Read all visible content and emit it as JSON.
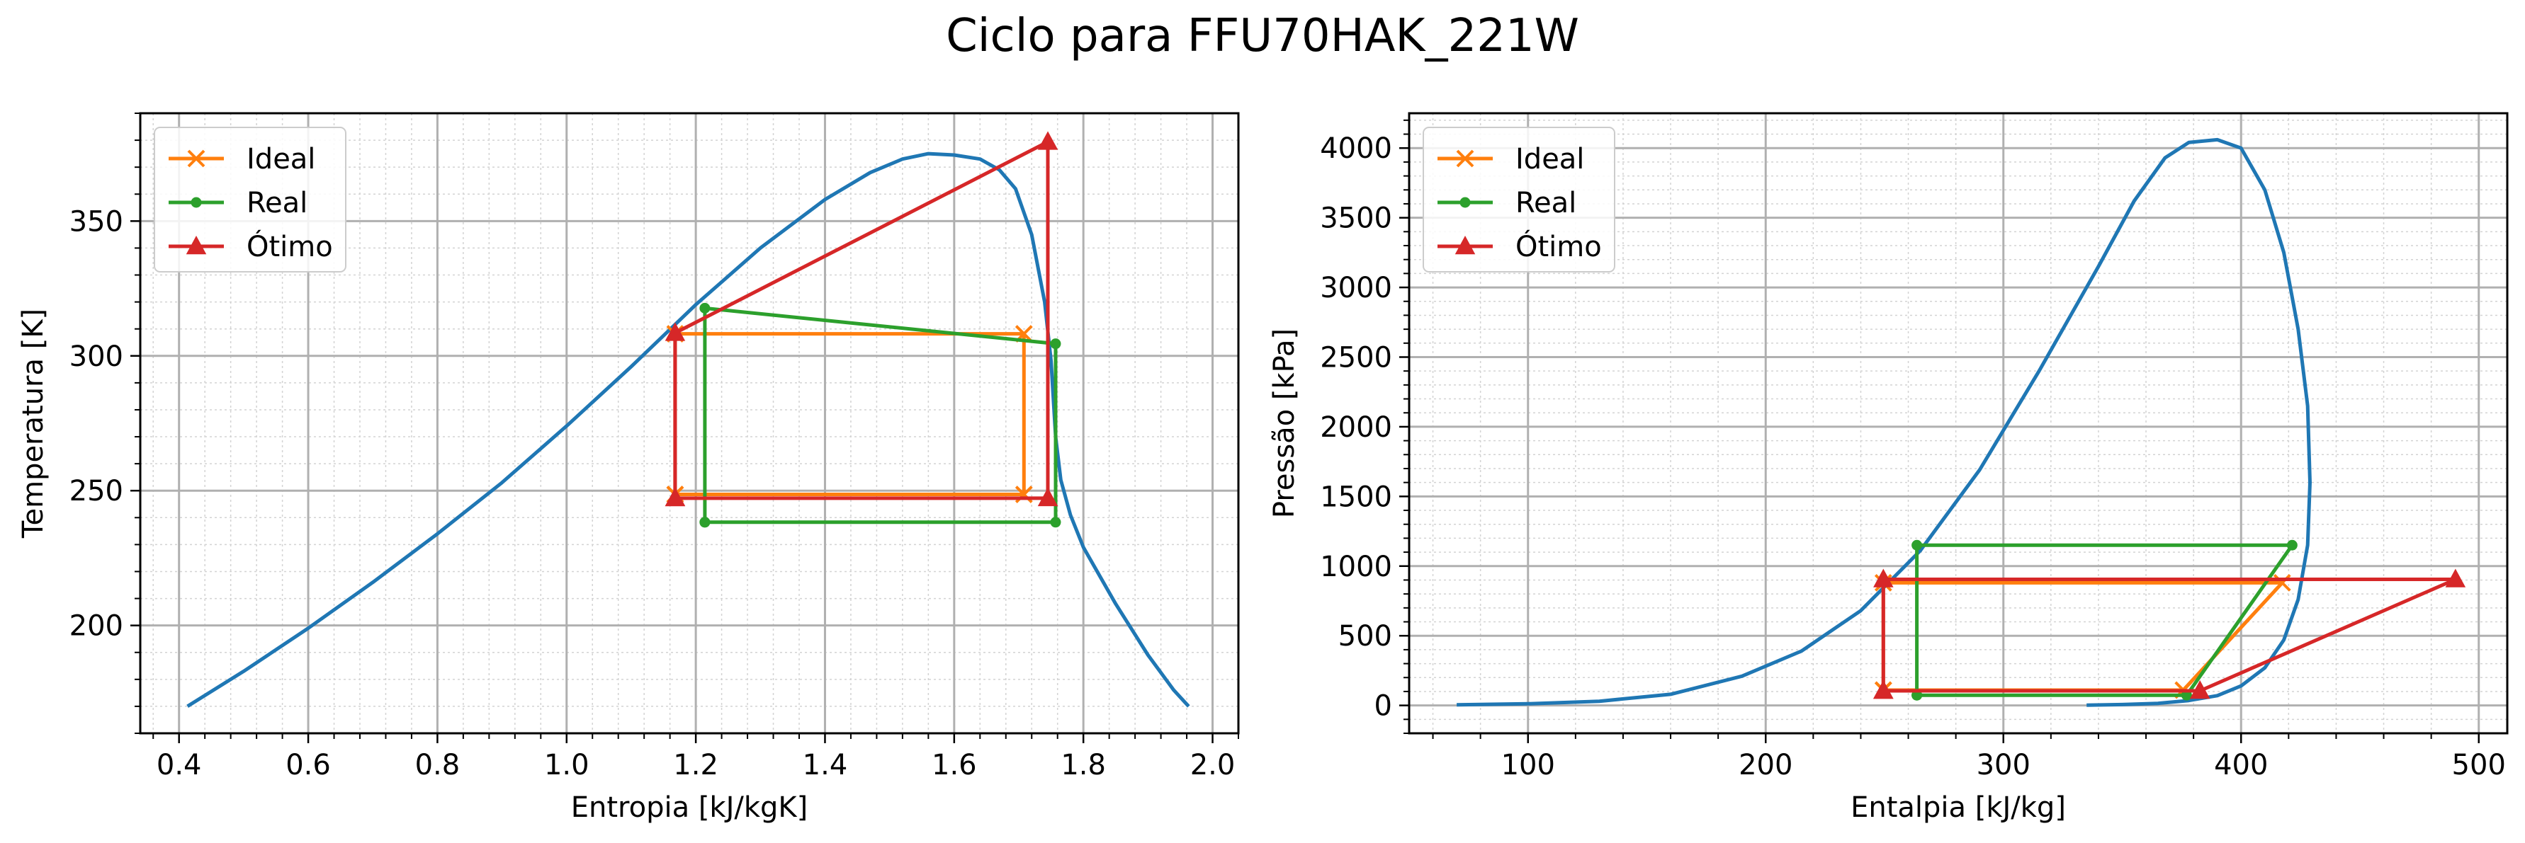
{
  "suptitle": "Ciclo para FFU70HAK_221W",
  "colors": {
    "dome": "#1f77b4",
    "ideal": "#ff7f0e",
    "real": "#2ca02c",
    "otimo": "#d62728"
  },
  "chart_data": [
    {
      "type": "line",
      "title": "",
      "xlabel": "Entropia [kJ/kgK]",
      "ylabel": "Temperatura [K]",
      "xlim": [
        0.34,
        2.04
      ],
      "ylim": [
        160,
        390
      ],
      "xticks": [
        0.4,
        0.6,
        0.8,
        1.0,
        1.2,
        1.4,
        1.6,
        1.8,
        2.0
      ],
      "xtick_labels": [
        "0.4",
        "0.6",
        "0.8",
        "1.0",
        "1.2",
        "1.4",
        "1.6",
        "1.8",
        "2.0"
      ],
      "yticks": [
        200,
        250,
        300,
        350
      ],
      "ytick_labels": [
        "200",
        "250",
        "300",
        "350"
      ],
      "grid": true,
      "legend_position": "top-left",
      "dome": {
        "x": [
          0.413,
          0.5,
          0.6,
          0.7,
          0.8,
          0.9,
          1.0,
          1.1,
          1.2,
          1.3,
          1.4,
          1.47,
          1.52,
          1.56,
          1.6,
          1.64,
          1.67,
          1.695,
          1.72,
          1.74,
          1.75,
          1.757,
          1.765,
          1.78,
          1.8,
          1.85,
          1.9,
          1.94,
          1.963
        ],
        "y": [
          170,
          183,
          199,
          216,
          234,
          253,
          274,
          296,
          319,
          340,
          358,
          368,
          373,
          375,
          374.5,
          373,
          369,
          362,
          345,
          320,
          298,
          270,
          254,
          241,
          229,
          208,
          189,
          176,
          170
        ]
      },
      "series": [
        {
          "name": "Ideal",
          "marker": "x",
          "x": [
            1.168,
            1.708,
            1.708,
            1.168,
            1.168
          ],
          "y": [
            248.6,
            248.6,
            308.2,
            308.2,
            248.6
          ]
        },
        {
          "name": "Real",
          "marker": "o",
          "x": [
            1.214,
            1.757,
            1.757,
            1.214,
            1.214
          ],
          "y": [
            238.3,
            238.3,
            304.5,
            317.7,
            238.3
          ]
        },
        {
          "name": "Ótimo",
          "marker": "^",
          "x": [
            1.168,
            1.745,
            1.745,
            1.168,
            1.168
          ],
          "y": [
            247.2,
            247.2,
            379.4,
            308.5,
            247.2
          ]
        }
      ]
    },
    {
      "type": "line",
      "title": "",
      "xlabel": "Entalpia [kJ/kg]",
      "ylabel": "Pressão [kPa]",
      "xlim": [
        50,
        512
      ],
      "ylim": [
        -200,
        4250
      ],
      "xticks": [
        100,
        200,
        300,
        400,
        500
      ],
      "xtick_labels": [
        "100",
        "200",
        "300",
        "400",
        "500"
      ],
      "yticks": [
        0,
        500,
        1000,
        1500,
        2000,
        2500,
        3000,
        3500,
        4000
      ],
      "ytick_labels": [
        "0",
        "500",
        "1000",
        "1500",
        "2000",
        "2500",
        "3000",
        "3500",
        "4000"
      ],
      "grid": true,
      "legend_position": "top-left",
      "dome": {
        "x": [
          70,
          100,
          130,
          160,
          190,
          215,
          240,
          265,
          290,
          315,
          340,
          355,
          368,
          378,
          390,
          400,
          410,
          418,
          424,
          428,
          429,
          428,
          424,
          418,
          410,
          400,
          390,
          378,
          365,
          350,
          335
        ],
        "y": [
          4,
          12,
          30,
          80,
          210,
          390,
          680,
          1110,
          1690,
          2400,
          3150,
          3620,
          3930,
          4040,
          4060,
          4000,
          3700,
          3250,
          2700,
          2150,
          1600,
          1150,
          760,
          470,
          270,
          140,
          70,
          35,
          15,
          6,
          2
        ]
      },
      "series": [
        {
          "name": "Ideal",
          "marker": "x",
          "x": [
            249.5,
            375.7,
            417.3,
            249.5,
            249.5
          ],
          "y": [
            110,
            110,
            880,
            880,
            110
          ]
        },
        {
          "name": "Real",
          "marker": "o",
          "x": [
            263.6,
            377.1,
            421.5,
            263.6,
            263.6
          ],
          "y": [
            73,
            73,
            1150,
            1150,
            73
          ]
        },
        {
          "name": "Ótimo",
          "marker": "^",
          "x": [
            249.5,
            382.7,
            490.2,
            249.5,
            249.5
          ],
          "y": [
            105,
            105,
            905,
            905,
            105
          ]
        }
      ]
    }
  ]
}
